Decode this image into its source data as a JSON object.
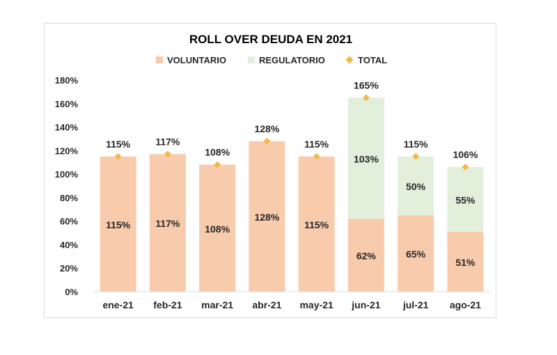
{
  "chart_data": {
    "type": "bar",
    "stacked": true,
    "title": "ROLL OVER DEUDA EN 2021",
    "categories": [
      "ene-21",
      "feb-21",
      "mar-21",
      "abr-21",
      "may-21",
      "jun-21",
      "jul-21",
      "ago-21"
    ],
    "series": [
      {
        "name": "VOLUNTARIO",
        "kind": "bar",
        "color": "#f8cbad",
        "values": [
          115,
          117,
          108,
          128,
          115,
          62,
          65,
          51
        ],
        "labels": [
          "115%",
          "117%",
          "108%",
          "128%",
          "115%",
          "62%",
          "65%",
          "51%"
        ]
      },
      {
        "name": "REGULATORIO",
        "kind": "bar",
        "color": "#e2efda",
        "values": [
          0,
          0,
          0,
          0,
          0,
          103,
          50,
          55
        ],
        "labels": [
          "",
          "",
          "",
          "",
          "",
          "103%",
          "50%",
          "55%"
        ]
      },
      {
        "name": "TOTAL",
        "kind": "marker",
        "color": "#f2b84b",
        "values": [
          115,
          117,
          108,
          128,
          115,
          165,
          115,
          106
        ],
        "labels": [
          "115%",
          "117%",
          "108%",
          "128%",
          "115%",
          "165%",
          "115%",
          "106%"
        ]
      }
    ],
    "ylim": [
      0,
      180
    ],
    "yticks": [
      0,
      20,
      40,
      60,
      80,
      100,
      120,
      140,
      160,
      180
    ],
    "ytick_labels": [
      "0%",
      "20%",
      "40%",
      "60%",
      "80%",
      "100%",
      "120%",
      "140%",
      "160%",
      "180%"
    ],
    "xlabel": "",
    "ylabel": "",
    "legend_position": "top",
    "grid": false
  }
}
